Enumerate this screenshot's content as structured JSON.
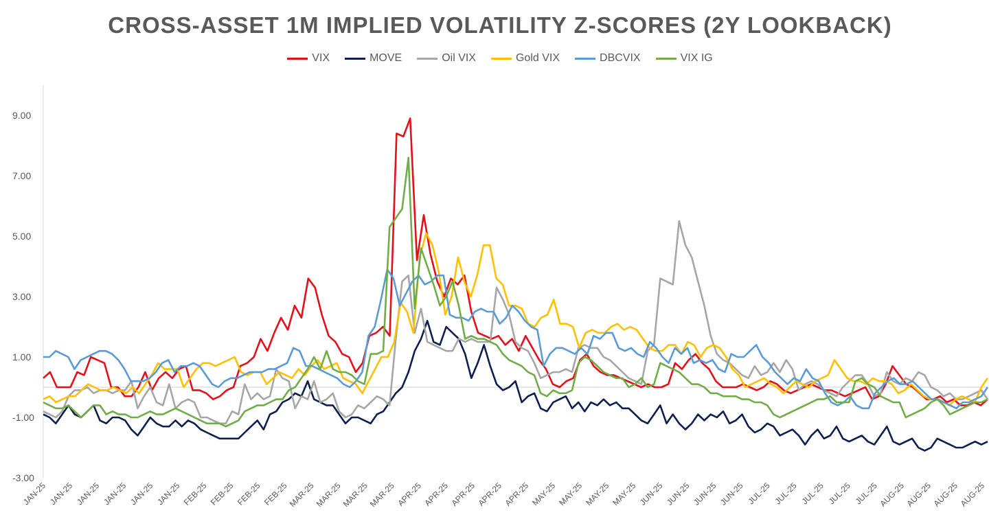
{
  "chart_data": {
    "type": "line",
    "title": "CROSS-ASSET 1M IMPLIED VOLATILITY Z-SCORES (2Y LOOKBACK)",
    "xlabel": "",
    "ylabel": "",
    "ylim": [
      -3,
      10
    ],
    "yticks": [
      "9.00",
      "7.00",
      "5.00",
      "3.00",
      "1.00",
      "-1.00",
      "-3.00"
    ],
    "ytick_values": [
      9,
      7,
      5,
      3,
      1,
      -1,
      -3
    ],
    "grid": false,
    "legend_position": "top",
    "x_labels": [
      "JAN-25",
      "JAN-25",
      "JAN-25",
      "JAN-25",
      "JAN-25",
      "JAN-25",
      "FEB-25",
      "FEB-25",
      "FEB-25",
      "FEB-25",
      "MAR-25",
      "MAR-25",
      "MAR-25",
      "MAR-25",
      "APR-25",
      "APR-25",
      "APR-25",
      "APR-25",
      "APR-25",
      "MAY-25",
      "MAY-25",
      "MAY-25",
      "MAY-25",
      "JUN-25",
      "JUN-25",
      "JUN-25",
      "JUN-25",
      "JUL-25",
      "JUL-25",
      "JUL-25",
      "JUL-25",
      "JUL-25",
      "AUG-25",
      "AUG-25",
      "AUG-25",
      "AUG-25"
    ],
    "colors": {
      "VIX": "#e3101a",
      "MOVE": "#0d1f4e",
      "Oil VIX": "#a6a6a6",
      "Gold VIX": "#ffc000",
      "DBCVIX": "#5b9bd5",
      "VIX IG": "#70ad47"
    },
    "series": [
      {
        "name": "VIX",
        "color": "#e3101a",
        "values": [
          0.3,
          0.5,
          0.0,
          0.0,
          0.0,
          0.5,
          0.4,
          1.0,
          0.9,
          0.8,
          0.0,
          0.0,
          -0.3,
          -0.3,
          0.0,
          0.5,
          -0.1,
          0.3,
          0.5,
          0.3,
          0.6,
          0.7,
          -0.1,
          -0.1,
          -0.2,
          -0.4,
          -0.3,
          -0.1,
          0.0,
          0.7,
          0.8,
          1.0,
          1.6,
          1.2,
          1.8,
          2.3,
          1.9,
          2.7,
          2.3,
          3.6,
          3.3,
          2.4,
          1.7,
          1.5,
          1.1,
          1.0,
          0.5,
          0.8,
          1.7,
          1.8,
          2.0,
          1.7,
          8.4,
          8.3,
          8.9,
          4.2,
          5.7,
          4.4,
          3.5,
          3.0,
          3.6,
          3.4,
          3.7,
          2.5,
          1.8,
          1.7,
          1.6,
          1.7,
          1.4,
          1.6,
          1.2,
          1.7,
          1.3,
          0.9,
          0.6,
          0.1,
          0.0,
          0.2,
          0.3,
          0.9,
          1.1,
          0.7,
          0.5,
          0.4,
          0.4,
          0.3,
          0.2,
          0.1,
          0.0,
          0.1,
          0.0,
          0.0,
          0.1,
          0.8,
          0.6,
          0.9,
          1.1,
          0.8,
          0.6,
          0.2,
          0.0,
          0.0,
          0.0,
          0.1,
          0.0,
          -0.1,
          0.0,
          0.2,
          0.1,
          -0.1,
          -0.2,
          -0.1,
          0.0,
          0.1,
          0.0,
          -0.1,
          -0.1,
          -0.2,
          -0.3,
          -0.2,
          -0.1,
          0.0,
          -0.4,
          -0.3,
          0.1,
          0.7,
          0.4,
          0.1,
          0.0,
          -0.2,
          -0.4,
          -0.4,
          -0.3,
          -0.5,
          -0.4,
          -0.6,
          -0.6,
          -0.5,
          -0.6,
          -0.4
        ]
      },
      {
        "name": "MOVE",
        "color": "#0d1f4e",
        "values": [
          -0.9,
          -1.0,
          -1.2,
          -0.9,
          -0.6,
          -0.9,
          -1.0,
          -0.8,
          -0.6,
          -1.1,
          -1.2,
          -1.0,
          -1.0,
          -1.1,
          -1.4,
          -1.6,
          -1.3,
          -1.0,
          -1.2,
          -1.3,
          -1.3,
          -1.1,
          -1.3,
          -1.1,
          -1.2,
          -1.4,
          -1.5,
          -1.6,
          -1.7,
          -1.7,
          -1.7,
          -1.7,
          -1.5,
          -1.3,
          -1.1,
          -1.4,
          -0.9,
          -0.8,
          -0.5,
          -0.4,
          -0.2,
          -0.3,
          0.2,
          -0.4,
          -0.5,
          -0.6,
          -0.6,
          -0.9,
          -1.2,
          -1.0,
          -1.0,
          -1.1,
          -1.2,
          -0.9,
          -0.8,
          -0.5,
          -0.2,
          0.0,
          0.5,
          1.2,
          1.6,
          2.2,
          1.5,
          1.4,
          2.0,
          1.8,
          1.6,
          1.1,
          0.3,
          0.8,
          1.4,
          0.7,
          0.1,
          -0.1,
          0.0,
          0.2,
          -0.5,
          -0.3,
          -0.2,
          -0.7,
          -0.8,
          -0.5,
          -0.4,
          -0.3,
          -0.7,
          -0.5,
          -0.8,
          -0.5,
          -0.6,
          -0.4,
          -0.6,
          -0.5,
          -0.7,
          -0.7,
          -0.9,
          -1.1,
          -1.2,
          -0.9,
          -0.6,
          -1.2,
          -0.9,
          -1.2,
          -1.4,
          -1.2,
          -0.9,
          -1.1,
          -0.9,
          -1.0,
          -0.8,
          -1.2,
          -1.1,
          -0.9,
          -1.3,
          -1.5,
          -1.4,
          -1.2,
          -1.3,
          -1.6,
          -1.5,
          -1.4,
          -1.6,
          -1.9,
          -1.6,
          -1.4,
          -1.7,
          -1.6,
          -1.3,
          -1.7,
          -1.8,
          -1.7,
          -1.6,
          -1.8,
          -1.9,
          -1.6,
          -1.3,
          -1.8,
          -1.9,
          -1.8,
          -1.7,
          -2.0,
          -2.1,
          -2.0,
          -1.7,
          -1.8,
          -1.9,
          -2.0,
          -2.0,
          -1.9,
          -1.8,
          -1.9,
          -1.8
        ]
      },
      {
        "name": "Oil VIX",
        "color": "#a6a6a6",
        "values": [
          -0.8,
          -0.9,
          -1.0,
          -0.8,
          -0.3,
          -0.1,
          -0.1,
          0.0,
          -0.2,
          -0.1,
          -0.1,
          -0.2,
          -0.1,
          -0.1,
          0.2,
          -0.7,
          -0.3,
          0.0,
          -0.5,
          -0.6,
          0.1,
          -0.7,
          -0.5,
          -0.4,
          -0.5,
          -1.0,
          -1.0,
          -1.1,
          -1.2,
          -1.2,
          -0.8,
          -0.9,
          0.1,
          -0.4,
          -0.2,
          -0.4,
          -0.3,
          0.6,
          0.3,
          0.2,
          -0.7,
          -0.3,
          -0.4,
          0.2,
          -0.5,
          -0.4,
          -0.2,
          -0.8,
          -1.0,
          -0.9,
          -0.6,
          -0.7,
          -0.5,
          -0.3,
          -0.4,
          -0.6,
          1.6,
          3.5,
          3.7,
          1.8,
          2.6,
          1.5,
          1.4,
          1.3,
          1.2,
          1.2,
          1.6,
          1.5,
          1.6,
          1.5,
          1.5,
          1.5,
          3.3,
          2.9,
          2.4,
          1.5,
          1.3,
          1.2,
          0.8,
          0.3,
          0.4,
          0.5,
          0.5,
          0.6,
          0.5,
          1.3,
          1.4,
          1.3,
          1.3,
          1.0,
          0.9,
          0.7,
          0.5,
          0.3,
          0.2,
          0.1,
          1.2,
          1.4,
          3.6,
          3.5,
          3.4,
          5.5,
          4.7,
          4.3,
          3.5,
          2.7,
          1.7,
          1.1,
          0.9,
          0.8,
          0.6,
          0.4,
          0.3,
          0.7,
          0.4,
          0.5,
          0.8,
          0.5,
          0.9,
          0.6,
          -0.1,
          0.1,
          0.2,
          0.1,
          -0.1,
          -0.2,
          -0.3,
          0.0,
          0.2,
          0.4,
          0.4,
          0.1,
          -0.3,
          -0.2,
          0.5,
          0.2,
          0.1,
          0.3,
          0.2,
          0.5,
          0.4,
          0.0,
          -0.1,
          -0.3,
          -0.2,
          -0.4,
          -0.4,
          -0.3,
          -0.2,
          -0.1,
          -0.4
        ]
      },
      {
        "name": "Gold VIX",
        "color": "#ffc000",
        "values": [
          -0.4,
          -0.3,
          -0.5,
          -0.4,
          -0.3,
          -0.3,
          -0.1,
          0.1,
          0.0,
          -0.1,
          -0.1,
          0.0,
          -0.1,
          -0.2,
          0.0,
          -0.2,
          0.1,
          0.4,
          0.8,
          0.6,
          0.6,
          0.6,
          0.0,
          0.3,
          0.6,
          0.8,
          0.8,
          0.7,
          0.8,
          0.9,
          1.0,
          0.5,
          0.4,
          0.5,
          0.5,
          0.1,
          0.3,
          0.5,
          0.4,
          0.3,
          0.6,
          0.4,
          0.7,
          0.9,
          0.6,
          0.7,
          0.8,
          0.3,
          0.2,
          0.1,
          -0.2,
          0.2,
          0.6,
          1.0,
          1.0,
          1.5,
          2.8,
          2.5,
          1.8,
          4.3,
          5.1,
          4.7,
          3.8,
          2.4,
          3.0,
          4.3,
          3.5,
          3.0,
          3.7,
          4.7,
          4.7,
          3.6,
          3.4,
          2.7,
          2.7,
          2.6,
          2.1,
          2.0,
          2.3,
          2.4,
          2.9,
          2.1,
          2.1,
          2.0,
          1.3,
          1.8,
          1.9,
          1.8,
          1.8,
          2.0,
          2.1,
          1.9,
          2.0,
          1.9,
          1.6,
          1.3,
          1.2,
          1.2,
          1.4,
          1.4,
          1.1,
          1.5,
          1.4,
          1.0,
          1.3,
          1.4,
          1.3,
          1.0,
          0.6,
          0.4,
          0.0,
          0.1,
          0.2,
          0.3,
          0.1,
          0.0,
          -0.2,
          0.0,
          0.2,
          0.1,
          0.0,
          0.2,
          0.3,
          0.4,
          0.9,
          0.6,
          0.3,
          0.2,
          0.2,
          0.1,
          0.3,
          0.2,
          0.2,
          0.1,
          -0.2,
          -0.1,
          0.1,
          -0.1,
          -0.3,
          -0.4,
          -0.4,
          -0.5,
          -0.6,
          -0.4,
          -0.3,
          -0.4,
          -0.5,
          0.0,
          0.3
        ]
      },
      {
        "name": "DBCVIX",
        "color": "#5b9bd5",
        "values": [
          1.0,
          1.0,
          1.2,
          1.1,
          1.0,
          0.6,
          0.9,
          1.0,
          1.1,
          1.2,
          1.2,
          1.1,
          0.9,
          0.6,
          0.2,
          0.2,
          0.2,
          0.3,
          0.5,
          0.8,
          0.9,
          0.5,
          0.7,
          0.7,
          0.8,
          0.7,
          0.4,
          0.1,
          0.0,
          0.2,
          0.3,
          0.3,
          0.4,
          0.5,
          0.5,
          0.5,
          0.6,
          0.6,
          0.7,
          0.8,
          1.3,
          1.2,
          0.7,
          0.7,
          0.6,
          0.5,
          0.4,
          0.3,
          0.1,
          0.0,
          0.2,
          0.5,
          1.7,
          2.0,
          2.9,
          3.9,
          3.6,
          2.7,
          3.1,
          3.5,
          3.7,
          3.4,
          3.5,
          3.7,
          3.7,
          2.4,
          2.3,
          2.3,
          2.2,
          2.5,
          2.6,
          2.5,
          2.5,
          2.1,
          2.3,
          2.7,
          2.5,
          2.2,
          2.0,
          1.9,
          0.7,
          1.1,
          1.3,
          1.3,
          1.2,
          1.1,
          1.3,
          1.1,
          1.7,
          1.6,
          1.8,
          1.8,
          1.3,
          1.2,
          1.3,
          1.1,
          1.0,
          1.5,
          1.3,
          1.0,
          0.8,
          1.3,
          1.1,
          1.3,
          0.8,
          0.9,
          0.8,
          0.9,
          0.6,
          0.5,
          1.1,
          1.0,
          1.0,
          1.2,
          1.4,
          1.0,
          0.8,
          0.5,
          0.3,
          0.1,
          0.3,
          0.2,
          0.6,
          0.3,
          0.2,
          -0.2,
          -0.5,
          -0.6,
          -0.5,
          -0.3,
          -0.6,
          -0.7,
          -0.7,
          -0.2,
          0.0,
          0.2,
          0.3,
          0.1,
          0.1,
          0.2,
          0.0,
          -0.2,
          -0.4,
          -0.4,
          -0.5,
          -0.6,
          -0.7,
          -0.5,
          -0.5,
          -0.4,
          -0.3,
          0.0
        ]
      },
      {
        "name": "VIX IG",
        "color": "#70ad47",
        "values": [
          -0.5,
          -0.6,
          -0.7,
          -0.7,
          -0.6,
          -0.8,
          -1.0,
          -0.8,
          -0.6,
          -0.6,
          -0.9,
          -0.8,
          -0.9,
          -0.9,
          -1.0,
          -1.0,
          -0.9,
          -0.8,
          -0.9,
          -0.9,
          -0.8,
          -0.7,
          -0.8,
          -0.9,
          -1.0,
          -1.1,
          -1.2,
          -1.2,
          -1.2,
          -1.3,
          -1.2,
          -1.1,
          -0.8,
          -0.7,
          -0.6,
          -0.6,
          -0.5,
          -0.4,
          -0.4,
          -0.1,
          0.0,
          0.3,
          0.6,
          1.0,
          0.6,
          1.2,
          0.6,
          0.5,
          0.5,
          0.4,
          0.2,
          0.1,
          1.1,
          1.1,
          1.2,
          5.3,
          5.6,
          5.9,
          7.6,
          2.6,
          4.6,
          4.0,
          3.4,
          2.7,
          3.0,
          3.5,
          2.7,
          1.6,
          1.7,
          1.6,
          1.6,
          1.5,
          1.4,
          1.1,
          0.9,
          0.8,
          0.7,
          0.5,
          0.4,
          -0.2,
          -0.3,
          -0.1,
          -0.2,
          -0.2,
          -0.1,
          0.8,
          1.0,
          0.9,
          0.7,
          0.5,
          0.4,
          0.3,
          0.3,
          0.0,
          0.1,
          0.3,
          0.0,
          0.1,
          0.8,
          0.7,
          0.6,
          0.5,
          0.3,
          0.1,
          0.1,
          0.0,
          -0.2,
          -0.2,
          -0.3,
          -0.3,
          -0.3,
          -0.4,
          -0.4,
          -0.5,
          -0.5,
          -0.6,
          -0.9,
          -1.0,
          -0.9,
          -0.8,
          -0.7,
          -0.6,
          -0.5,
          -0.4,
          -0.4,
          -0.3,
          -0.5,
          -0.5,
          -0.5,
          0.2,
          0.3,
          0.1,
          0.0,
          -0.3,
          -0.4,
          -0.5,
          -0.5,
          -1.0,
          -0.9,
          -0.8,
          -0.7,
          -0.5,
          -0.4,
          -0.6,
          -0.9,
          -0.8,
          -0.7,
          -0.6,
          -0.5,
          -0.5,
          -0.4
        ]
      }
    ]
  }
}
